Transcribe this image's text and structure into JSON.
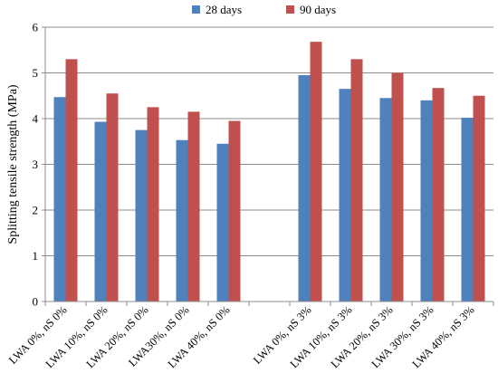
{
  "chart_data": {
    "type": "bar",
    "ylabel": "Splitting tensile strength (MPa)",
    "ylim": [
      0,
      6
    ],
    "yticks": [
      0,
      1,
      2,
      3,
      4,
      5,
      6
    ],
    "grid": "horizontal",
    "legend_position": "top",
    "categories": [
      "LWA 0%, nS 0%",
      "LWA 10%, nS 0%",
      "LWA 20%, nS 0%",
      "LWA30%, nS 0%",
      "LWA 40%, nS 0%",
      "",
      "LWA 0%, nS 3%",
      "LWA 10%, nS 3%",
      "LWA 20%, nS 3%",
      "LWA 30%, nS 3%",
      "LWA 40%, nS 3%"
    ],
    "series": [
      {
        "name": "28 days",
        "color": "#4f81bd",
        "values": [
          4.47,
          3.93,
          3.75,
          3.53,
          3.45,
          null,
          4.95,
          4.65,
          4.45,
          4.4,
          4.02
        ]
      },
      {
        "name": "90 days",
        "color": "#c0504d",
        "values": [
          5.3,
          4.55,
          4.25,
          4.15,
          3.95,
          null,
          5.68,
          5.3,
          5.0,
          4.67,
          4.5
        ]
      }
    ]
  }
}
